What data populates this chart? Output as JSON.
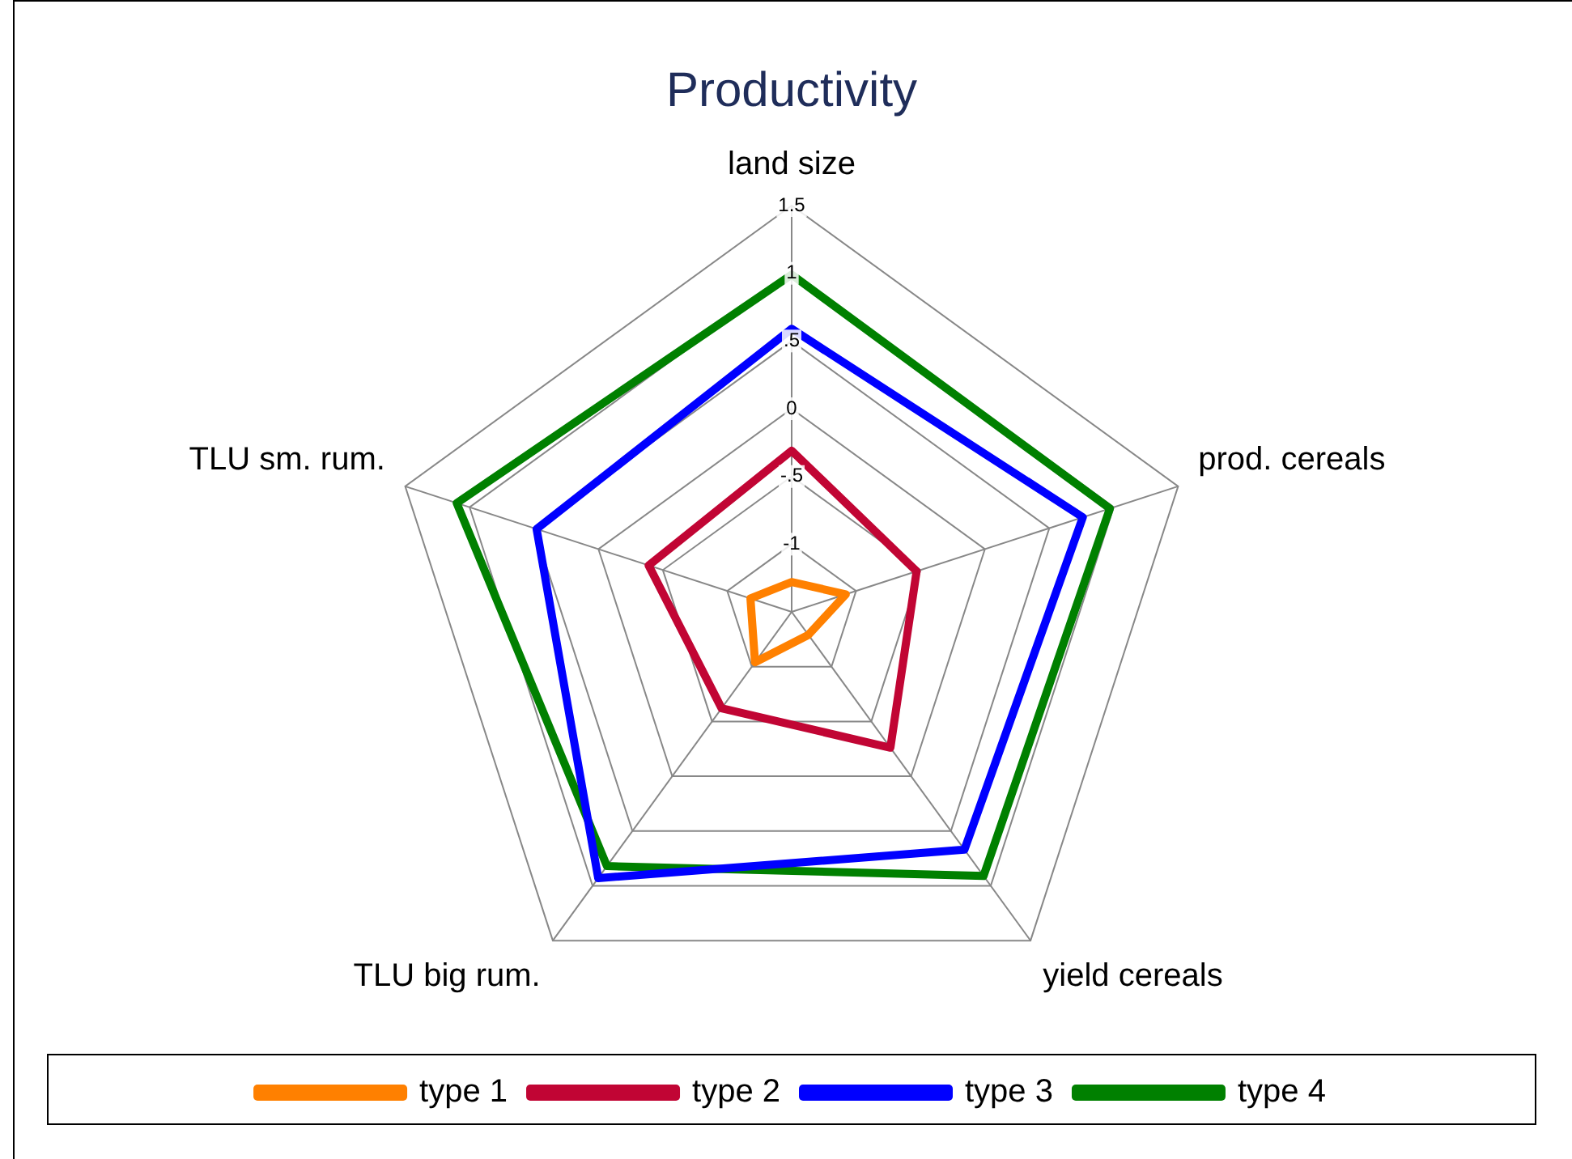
{
  "chart_data": {
    "type": "radar",
    "title": "Productivity",
    "categories": [
      "land size",
      "prod. cereals",
      "yield cereals",
      "TLU big rum.",
      "TLU sm. rum."
    ],
    "series": [
      {
        "name": "type 1",
        "color": "#ff8000",
        "values": [
          -1.28,
          -1.08,
          -1.29,
          -1.04,
          -1.18
        ]
      },
      {
        "name": "type 2",
        "color": "#c10534",
        "values": [
          -0.31,
          -0.53,
          -0.26,
          -0.62,
          -0.39
        ]
      },
      {
        "name": "type 3",
        "color": "#0000ff",
        "values": [
          0.59,
          0.76,
          0.67,
          0.93,
          0.48
        ]
      },
      {
        "name": "type 4",
        "color": "#008000",
        "values": [
          0.99,
          0.97,
          0.91,
          0.82,
          1.1
        ]
      }
    ],
    "ylim": [
      -1.5,
      1.5
    ],
    "yticks": [
      {
        "value": -1,
        "label": "-1"
      },
      {
        "value": -0.5,
        "label": "-.5"
      },
      {
        "value": 0,
        "label": "0"
      },
      {
        "value": 0.5,
        "label": ".5"
      },
      {
        "value": 1,
        "label": "1"
      },
      {
        "value": 1.5,
        "label": "1.5"
      }
    ],
    "grid": true,
    "legend": "bottom",
    "marker": "none",
    "line_style": "solid"
  }
}
